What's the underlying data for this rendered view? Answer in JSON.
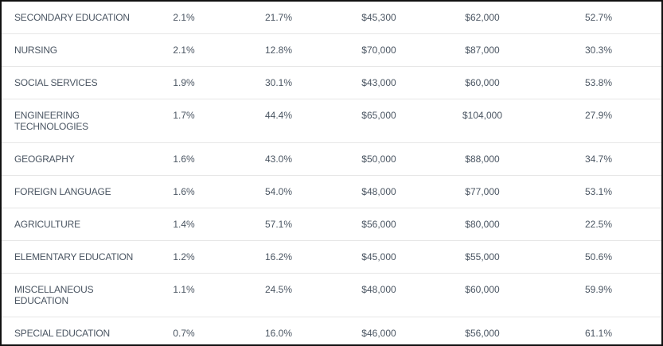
{
  "table": {
    "rows": [
      [
        "SECONDARY EDUCATION",
        "2.1%",
        "21.7%",
        "$45,300",
        "$62,000",
        "52.7%"
      ],
      [
        "NURSING",
        "2.1%",
        "12.8%",
        "$70,000",
        "$87,000",
        "30.3%"
      ],
      [
        "SOCIAL SERVICES",
        "1.9%",
        "30.1%",
        "$43,000",
        "$60,000",
        "53.8%"
      ],
      [
        "ENGINEERING TECHNOLOGIES",
        "1.7%",
        "44.4%",
        "$65,000",
        "$104,000",
        "27.9%"
      ],
      [
        "GEOGRAPHY",
        "1.6%",
        "43.0%",
        "$50,000",
        "$88,000",
        "34.7%"
      ],
      [
        "FOREIGN LANGUAGE",
        "1.6%",
        "54.0%",
        "$48,000",
        "$77,000",
        "53.1%"
      ],
      [
        "AGRICULTURE",
        "1.4%",
        "57.1%",
        "$56,000",
        "$80,000",
        "22.5%"
      ],
      [
        "ELEMENTARY EDUCATION",
        "1.2%",
        "16.2%",
        "$45,000",
        "$55,000",
        "50.6%"
      ],
      [
        "MISCELLANEOUS EDUCATION",
        "1.1%",
        "24.5%",
        "$48,000",
        "$60,000",
        "59.9%"
      ],
      [
        "SPECIAL EDUCATION",
        "0.7%",
        "16.0%",
        "$46,000",
        "$56,000",
        "61.1%"
      ]
    ]
  }
}
